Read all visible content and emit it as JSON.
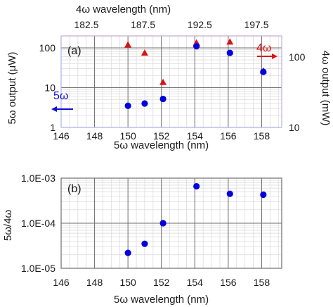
{
  "chart_data": [
    {
      "panel_label": "(a)",
      "type": "scatter",
      "xlabel_bottom": "5ω wavelength (nm)",
      "xlabel_top": "4ω wavelength (nm)",
      "ylabel_left": "5ω output (μW)",
      "ylabel_right": "4ω output (mW)",
      "x_ticks": [
        "146",
        "148",
        "150",
        "152",
        "154",
        "156",
        "158"
      ],
      "x_top_ticks": [
        "182.5",
        "187.5",
        "192.5",
        "197.5"
      ],
      "y_left_ticks": [
        "1",
        "10",
        "100"
      ],
      "y_right_ticks": [
        "10",
        "100"
      ],
      "xlim": [
        146,
        159.2
      ],
      "ylim_left": [
        1,
        200
      ],
      "ylim_right": [
        10,
        200
      ],
      "y_scale": "log",
      "grid": true,
      "series": [
        {
          "axis": "left",
          "marker": "circle",
          "color": "#0000e0",
          "points": [
            {
              "x": 150.0,
              "y": 3.5
            },
            {
              "x": 151.0,
              "y": 4.0
            },
            {
              "x": 152.1,
              "y": 5.2
            },
            {
              "x": 154.1,
              "y": 110
            },
            {
              "x": 156.1,
              "y": 75
            },
            {
              "x": 158.1,
              "y": 25
            }
          ]
        },
        {
          "axis": "right",
          "marker": "triangle",
          "color": "#e01010",
          "points": [
            {
              "x": 150.0,
              "y": 150
            },
            {
              "x": 151.0,
              "y": 115
            },
            {
              "x": 152.1,
              "y": 44
            },
            {
              "x": 154.1,
              "y": 160
            },
            {
              "x": 156.1,
              "y": 165
            },
            {
              "x": 158.1,
              "y": 64
            }
          ]
        }
      ],
      "annotations": [
        {
          "text": "5ω",
          "color": "#1010d0",
          "arrow": "left"
        },
        {
          "text": "4ω",
          "color": "#e01010",
          "arrow": "right"
        }
      ]
    },
    {
      "panel_label": "(b)",
      "type": "scatter",
      "xlabel": "5ω wavelength (nm)",
      "ylabel": "5ω/4ω",
      "x_ticks": [
        "146",
        "148",
        "150",
        "152",
        "154",
        "156",
        "158"
      ],
      "y_ticks": [
        "1.0E-05",
        "1.0E-04",
        "1.0E-03"
      ],
      "xlim": [
        146,
        159.2
      ],
      "ylim": [
        1e-05,
        0.001
      ],
      "y_scale": "log",
      "grid": true,
      "series": [
        {
          "marker": "circle",
          "color": "#0000e0",
          "points": [
            {
              "x": 150.0,
              "y": 2.2e-05
            },
            {
              "x": 151.0,
              "y": 3.5e-05
            },
            {
              "x": 152.1,
              "y": 0.0001
            },
            {
              "x": 154.1,
              "y": 0.00066
            },
            {
              "x": 156.1,
              "y": 0.00045
            },
            {
              "x": 158.1,
              "y": 0.00043
            }
          ]
        }
      ]
    }
  ]
}
